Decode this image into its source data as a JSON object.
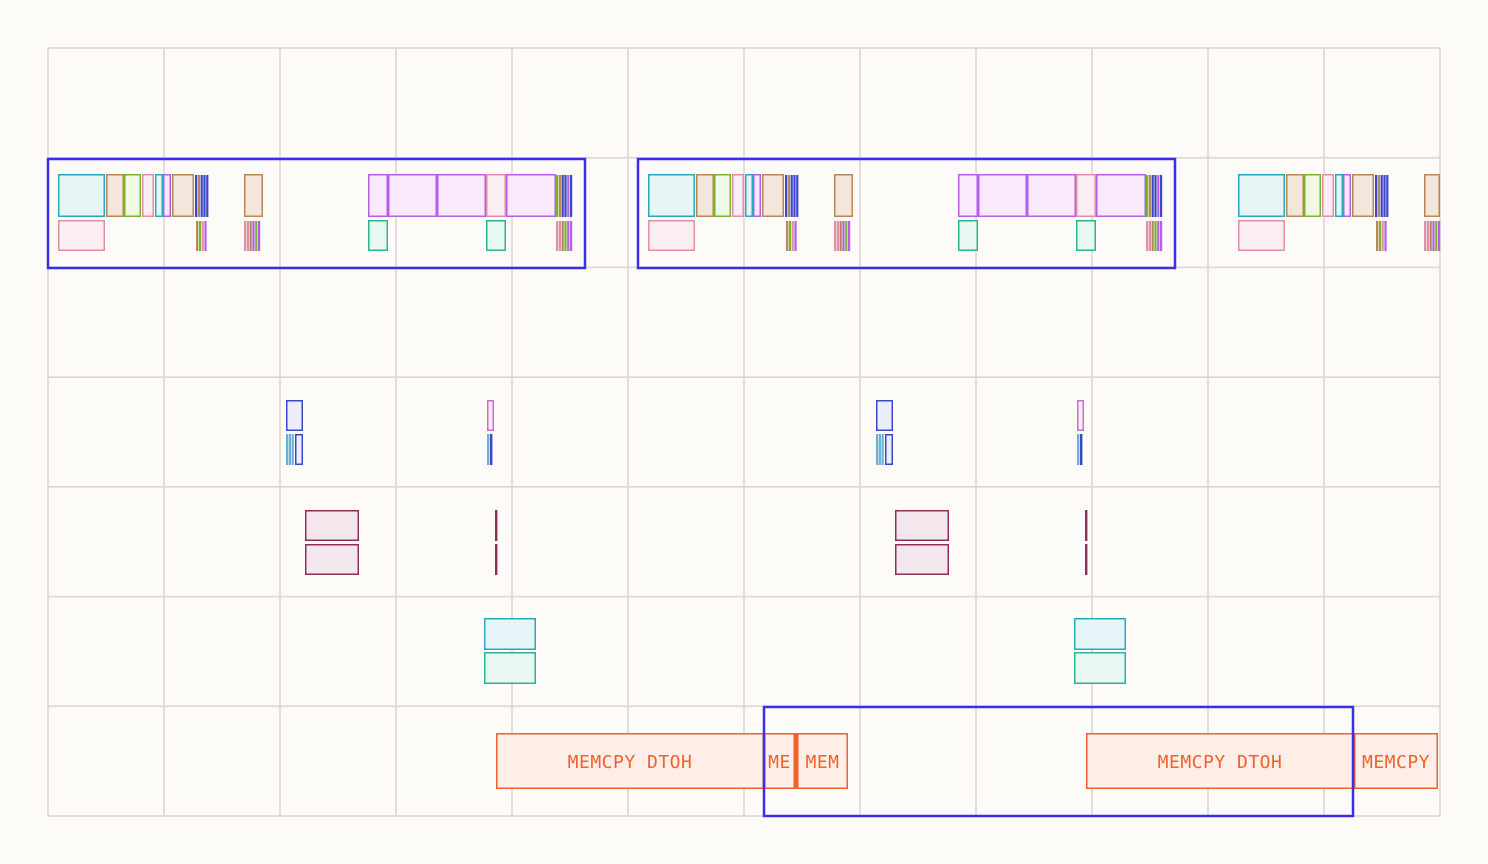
{
  "timeline": {
    "grid_color": "#d9d6d1",
    "background": "#fcfbf8",
    "selection_color": "#3b2ee8",
    "memcpy": {
      "label_full": "MEMCPY DTOH",
      "label_short_1": "ME",
      "label_short_2": "MEM",
      "label_partial": "MEMCPY",
      "stroke": "#f0612b",
      "fill": "#ffeee7"
    },
    "palette": {
      "teal": "#2ba8b8",
      "teal_fill": "#e6f5f6",
      "tan": "#b7875a",
      "tan_fill": "#f3e7dc",
      "lime": "#79b32a",
      "lime_fill": "#f1f8e6",
      "pink": "#e08fa8",
      "pink_fill": "#fbeef2",
      "violet": "#b35fe6",
      "violet_fill": "#f8e9fd",
      "navy": "#3a48c8",
      "navy_fill": "#eceefb",
      "sky": "#6ab1d9",
      "magenta": "#d268d6",
      "maroon": "#8e2e5a",
      "maroon_fill": "#f3e6ec",
      "cyan": "#2aa9bd",
      "cyan_fill": "#e6f6f8",
      "green": "#2ab591",
      "green_fill": "#e7f8f2"
    }
  }
}
